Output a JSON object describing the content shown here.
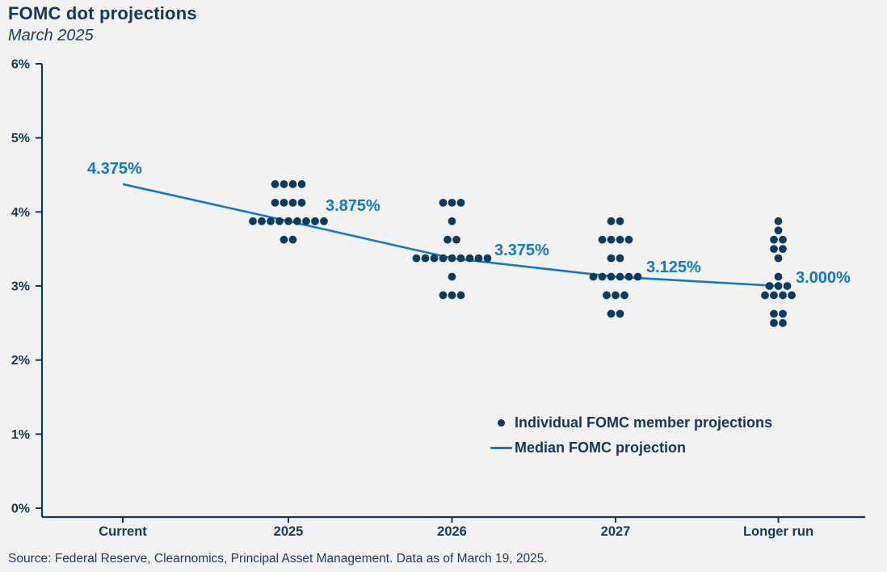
{
  "header": {
    "title": "FOMC dot projections",
    "subtitle": "March 2025"
  },
  "colors": {
    "navy": "#11395f",
    "dot_navy": "#0d3a5f",
    "blue": "#0f77d0",
    "background": "#f2f2f2"
  },
  "chart_data": {
    "type": "scatter",
    "subtype": "fomc-dot-plot",
    "title": "FOMC dot projections",
    "subtitle": "March 2025",
    "xlabel": "",
    "ylabel": "",
    "ylim": [
      0,
      6
    ],
    "ytick_labels": [
      "0%",
      "1%",
      "2%",
      "3%",
      "4%",
      "5%",
      "6%"
    ],
    "categories": [
      "Current",
      "2025",
      "2026",
      "2027",
      "Longer run"
    ],
    "grid": false,
    "legend_position": "inside-lower-right",
    "dots": [
      {
        "category": "Current",
        "rows": []
      },
      {
        "category": "2025",
        "rows": [
          {
            "rate": 4.375,
            "count": 4
          },
          {
            "rate": 4.125,
            "count": 4
          },
          {
            "rate": 3.875,
            "count": 9
          },
          {
            "rate": 3.625,
            "count": 2
          }
        ]
      },
      {
        "category": "2026",
        "rows": [
          {
            "rate": 4.125,
            "count": 3
          },
          {
            "rate": 3.875,
            "count": 1
          },
          {
            "rate": 3.625,
            "count": 2
          },
          {
            "rate": 3.375,
            "count": 9
          },
          {
            "rate": 3.125,
            "count": 1
          },
          {
            "rate": 2.875,
            "count": 3
          }
        ]
      },
      {
        "category": "2027",
        "rows": [
          {
            "rate": 3.875,
            "count": 2
          },
          {
            "rate": 3.625,
            "count": 4
          },
          {
            "rate": 3.375,
            "count": 2
          },
          {
            "rate": 3.125,
            "count": 6
          },
          {
            "rate": 2.875,
            "count": 3
          },
          {
            "rate": 2.625,
            "count": 2
          }
        ]
      },
      {
        "category": "Longer run",
        "rows": [
          {
            "rate": 3.875,
            "count": 1
          },
          {
            "rate": 3.75,
            "count": 1
          },
          {
            "rate": 3.625,
            "count": 2
          },
          {
            "rate": 3.5,
            "count": 2
          },
          {
            "rate": 3.375,
            "count": 1
          },
          {
            "rate": 3.125,
            "count": 1
          },
          {
            "rate": 3.0,
            "count": 3
          },
          {
            "rate": 2.875,
            "count": 4
          },
          {
            "rate": 2.625,
            "count": 2
          },
          {
            "rate": 2.5,
            "count": 2
          }
        ]
      }
    ],
    "median_series": {
      "name": "Median FOMC projection",
      "values": [
        4.375,
        3.875,
        3.375,
        3.125,
        3.0
      ],
      "labels": [
        "4.375%",
        "3.875%",
        "3.375%",
        "3.125%",
        "3.000%"
      ]
    }
  },
  "legend": {
    "items": [
      {
        "marker": "dot-icon",
        "label": "Individual FOMC member projections"
      },
      {
        "marker": "line-icon",
        "label": "Median FOMC projection"
      }
    ]
  },
  "footer": {
    "source": "Source: Federal Reserve, Clearnomics, Principal Asset Management. Data as of March 19, 2025."
  }
}
